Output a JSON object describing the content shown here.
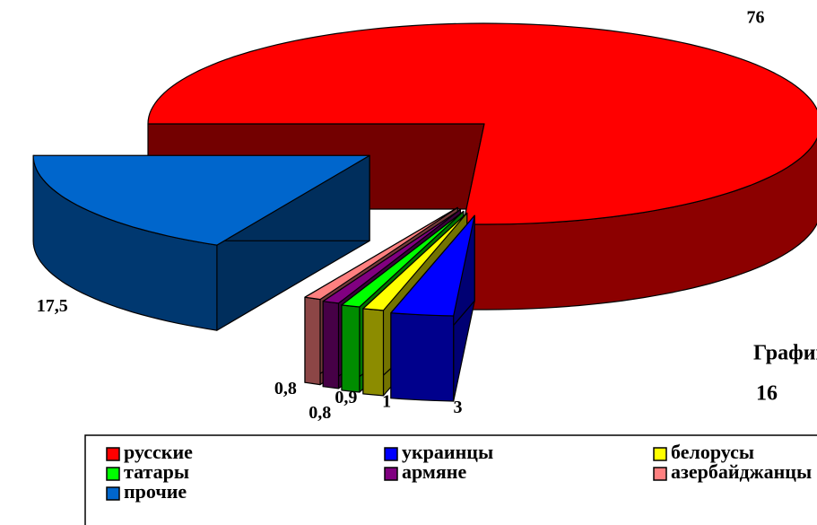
{
  "chart_data": {
    "type": "pie3d",
    "title_lines": [
      "График",
      "16"
    ],
    "categories": [
      "русские",
      "украинцы",
      "белорусы",
      "татары",
      "армяне",
      "азербайджанцы",
      "прочие"
    ],
    "values": [
      76,
      3,
      1,
      0.9,
      0.8,
      0.8,
      17.5
    ],
    "value_labels": [
      "76",
      "3",
      "1",
      "0,9",
      "0,8",
      "0,8",
      "17,5"
    ],
    "colors": [
      "#ff0000",
      "#0000ff",
      "#ffff00",
      "#00ff00",
      "#800080",
      "#ff8080",
      "#0066cc"
    ],
    "legend": "bottom"
  }
}
